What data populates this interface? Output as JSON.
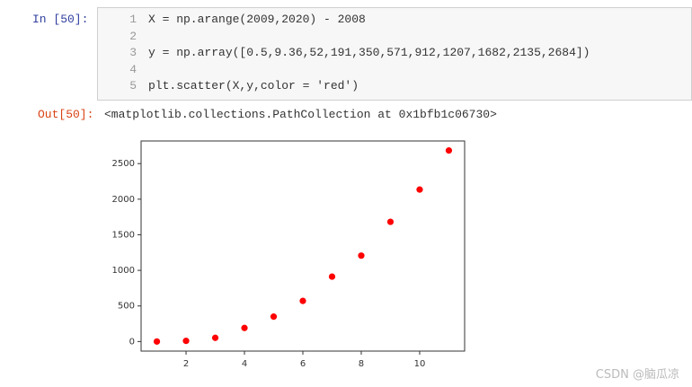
{
  "cell": {
    "in_prompt": "In [50]:",
    "line_numbers": [
      1,
      2,
      3,
      4,
      5
    ],
    "code_lines": [
      "X = np.arange(2009,2020) - 2008",
      "",
      "y = np.array([0.5,9.36,52,191,350,571,912,1207,1682,2135,2684])",
      "",
      "plt.scatter(X,y,color = 'red')"
    ]
  },
  "output": {
    "out_prompt": "Out[50]:",
    "text": "<matplotlib.collections.PathCollection at 0x1bfb1c06730>"
  },
  "chart_data": {
    "type": "scatter",
    "x": [
      1,
      2,
      3,
      4,
      5,
      6,
      7,
      8,
      9,
      10,
      11
    ],
    "values": [
      0.5,
      9.36,
      52,
      191,
      350,
      571,
      912,
      1207,
      1682,
      2135,
      2684
    ],
    "color": "red",
    "xlim": [
      0.46,
      11.54
    ],
    "xticks": [
      2,
      4,
      6,
      8,
      10
    ],
    "ylim": [
      -134,
      2818
    ],
    "yticks": [
      0,
      500,
      1000,
      1500,
      2000,
      2500
    ],
    "grid": false
  },
  "watermark": "CSDN @脑瓜凉"
}
